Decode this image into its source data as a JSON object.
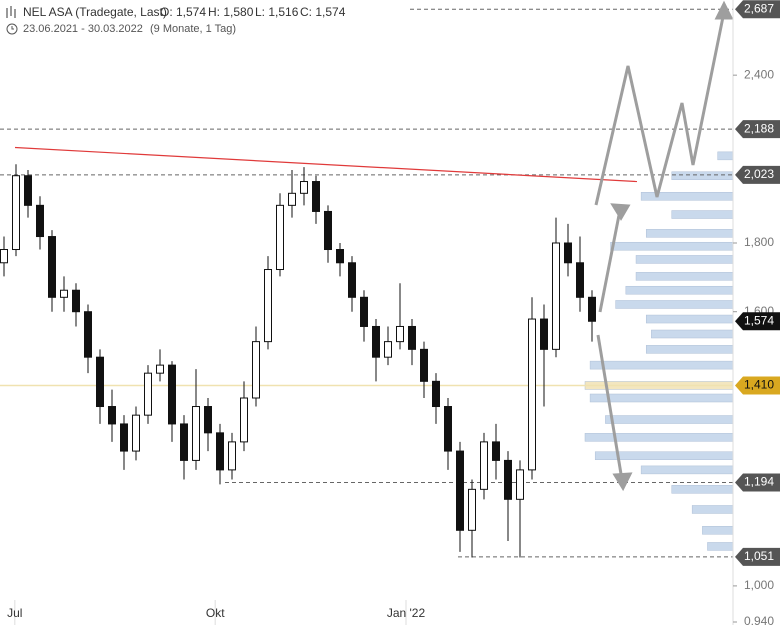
{
  "chart_data": {
    "type": "candlestick",
    "title": "NEL ASA (Tradegate, Last)",
    "quote": {
      "open": "O: 1,574",
      "high": "H: 1,580",
      "low": "L: 1,516",
      "close": "C: 1,574"
    },
    "date_range": "23.06.2021 - 30.03.2022",
    "period": "(9 Monate, 1 Tag)",
    "log_scale": true,
    "ylim": [
      0.94,
      2.73
    ],
    "yticks": [
      {
        "value": 0.94,
        "label": "0,940"
      },
      {
        "value": 1.0,
        "label": "1,000"
      },
      {
        "value": 1.6,
        "label": "1,600"
      },
      {
        "value": 1.8,
        "label": "1,800"
      },
      {
        "value": 2.4,
        "label": "2,400"
      }
    ],
    "xticks": [
      {
        "value": 0.9,
        "label": "Jul"
      },
      {
        "value": 17.6,
        "label": "Okt"
      },
      {
        "value": 33.5,
        "label": "Jan '22"
      }
    ],
    "up_color": "#ffffff",
    "down_color": "#111111",
    "open": [
      1.74,
      1.78,
      2.02,
      1.92,
      1.82,
      1.64,
      1.66,
      1.6,
      1.48,
      1.36,
      1.32,
      1.26,
      1.34,
      1.44,
      1.46,
      1.32,
      1.24,
      1.36,
      1.3,
      1.22,
      1.28,
      1.38,
      1.52,
      1.72,
      1.92,
      1.96,
      2.0,
      1.9,
      1.78,
      1.74,
      1.64,
      1.56,
      1.48,
      1.52,
      1.56,
      1.5,
      1.42,
      1.36,
      1.26,
      1.1,
      1.18,
      1.28,
      1.24,
      1.16,
      1.22,
      1.58,
      1.5,
      1.8,
      1.74,
      1.64
    ],
    "high": [
      1.82,
      2.06,
      2.04,
      1.95,
      1.84,
      1.7,
      1.68,
      1.62,
      1.5,
      1.4,
      1.34,
      1.36,
      1.46,
      1.5,
      1.47,
      1.34,
      1.45,
      1.38,
      1.32,
      1.3,
      1.42,
      1.56,
      1.76,
      1.96,
      2.04,
      2.05,
      2.02,
      1.92,
      1.8,
      1.76,
      1.66,
      1.58,
      1.56,
      1.68,
      1.58,
      1.52,
      1.44,
      1.38,
      1.28,
      1.2,
      1.3,
      1.32,
      1.26,
      1.24,
      1.64,
      1.62,
      1.88,
      1.86,
      1.82,
      1.66
    ],
    "low": [
      1.7,
      1.76,
      1.88,
      1.78,
      1.6,
      1.6,
      1.56,
      1.44,
      1.32,
      1.28,
      1.22,
      1.24,
      1.32,
      1.42,
      1.28,
      1.2,
      1.22,
      1.26,
      1.19,
      1.2,
      1.26,
      1.36,
      1.5,
      1.7,
      1.88,
      1.92,
      1.86,
      1.74,
      1.7,
      1.6,
      1.52,
      1.42,
      1.46,
      1.5,
      1.46,
      1.38,
      1.32,
      1.22,
      1.06,
      1.05,
      1.16,
      1.2,
      1.08,
      1.05,
      1.2,
      1.36,
      1.48,
      1.7,
      1.6,
      1.52
    ],
    "close": [
      1.78,
      2.02,
      1.92,
      1.82,
      1.64,
      1.66,
      1.6,
      1.48,
      1.36,
      1.32,
      1.26,
      1.34,
      1.44,
      1.46,
      1.32,
      1.24,
      1.36,
      1.3,
      1.22,
      1.28,
      1.38,
      1.52,
      1.72,
      1.92,
      1.96,
      2.0,
      1.9,
      1.78,
      1.74,
      1.64,
      1.56,
      1.48,
      1.52,
      1.56,
      1.5,
      1.42,
      1.36,
      1.26,
      1.1,
      1.18,
      1.28,
      1.24,
      1.16,
      1.22,
      1.58,
      1.5,
      1.8,
      1.74,
      1.64,
      1.574
    ],
    "levels": [
      {
        "value": 2.687,
        "label": "2,687",
        "color": "#555555"
      },
      {
        "value": 2.188,
        "label": "2,188",
        "color": "#555555"
      },
      {
        "value": 2.023,
        "label": "2,023",
        "color": "#555555"
      },
      {
        "value": 1.574,
        "label": "1,574",
        "color": "#111111"
      },
      {
        "value": 1.41,
        "label": "1,410",
        "color": "#d9a820"
      },
      {
        "value": 1.194,
        "label": "1,194",
        "color": "#555555"
      },
      {
        "value": 1.051,
        "label": "1,051",
        "color": "#555555"
      }
    ],
    "trendline": {
      "color": "#e03a3a",
      "values": [
        2.12,
        2.0
      ]
    },
    "volume_profile": {
      "color": "#c9d9ec",
      "highlight_color": "#f3e6bf",
      "prices": [
        2.09,
        2.02,
        1.95,
        1.89,
        1.83,
        1.79,
        1.75,
        1.7,
        1.66,
        1.62,
        1.58,
        1.54,
        1.5,
        1.46,
        1.41,
        1.38,
        1.33,
        1.29,
        1.25,
        1.22,
        1.18,
        1.14,
        1.1,
        1.07
      ],
      "values": [
        15,
        60,
        90,
        60,
        85,
        120,
        95,
        95,
        105,
        115,
        85,
        80,
        85,
        140,
        145,
        140,
        125,
        145,
        135,
        90,
        60,
        40,
        30,
        25
      ]
    }
  }
}
